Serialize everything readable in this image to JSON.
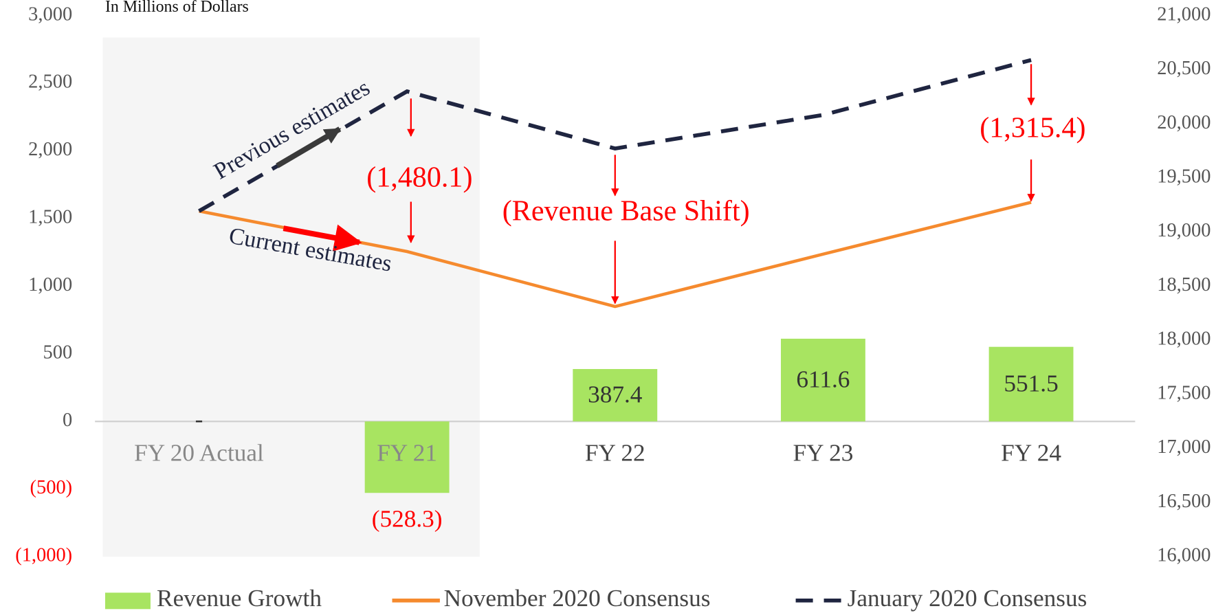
{
  "chart_data": {
    "type": "bar",
    "subtitle": "In Millions of Dollars",
    "categories": [
      "FY 20 Actual",
      "FY 21",
      "FY 22",
      "FY 23",
      "FY 24"
    ],
    "series": [
      {
        "name": "Revenue Growth",
        "type": "bar",
        "color": "#a8e461",
        "values": [
          0,
          -528.3,
          387.4,
          611.6,
          551.5
        ],
        "value_labels": [
          "-",
          "(528.3)",
          "387.4",
          "611.6",
          "551.5"
        ]
      },
      {
        "name": "November 2020 Consensus",
        "type": "line",
        "axis": "y2",
        "color": "#f58a2e",
        "values": [
          19194,
          18820,
          18312,
          18796,
          19275
        ]
      },
      {
        "name": "January 2020 Consensus",
        "type": "line",
        "axis": "y2",
        "dashed": true,
        "color": "#1f2540",
        "values": [
          19194,
          20300,
          19772,
          20082,
          20590
        ]
      }
    ],
    "ylim": [
      -1000,
      3000
    ],
    "yticks": [
      {
        "value": -1000,
        "label": "(1,000)"
      },
      {
        "value": -500,
        "label": "(500)"
      },
      0,
      500,
      {
        "value": 1000,
        "label": "1,000"
      },
      {
        "value": 1500,
        "label": "1,500"
      },
      {
        "value": 2000,
        "label": "2,000"
      },
      {
        "value": 2500,
        "label": "2,500"
      },
      {
        "value": 3000,
        "label": "3,000"
      }
    ],
    "y2lim": [
      16000,
      21000
    ],
    "y2ticks": [
      {
        "value": 16000,
        "label": "16,000"
      },
      {
        "value": 16500,
        "label": "16,500"
      },
      {
        "value": 17000,
        "label": "17,000"
      },
      {
        "value": 17500,
        "label": "17,500"
      },
      {
        "value": 18000,
        "label": "18,000"
      },
      {
        "value": 18500,
        "label": "18,500"
      },
      {
        "value": 19000,
        "label": "19,000"
      },
      {
        "value": 19500,
        "label": "19,500"
      },
      {
        "value": 20000,
        "label": "20,000"
      },
      {
        "value": 20500,
        "label": "20,500"
      },
      {
        "value": 21000,
        "label": "21,000"
      }
    ],
    "annotations": [
      "Previous estimates",
      "Current estimates",
      "(1,480.1)",
      "(Revenue Base Shift)",
      "(1,315.4)"
    ],
    "legend": "bottom"
  }
}
